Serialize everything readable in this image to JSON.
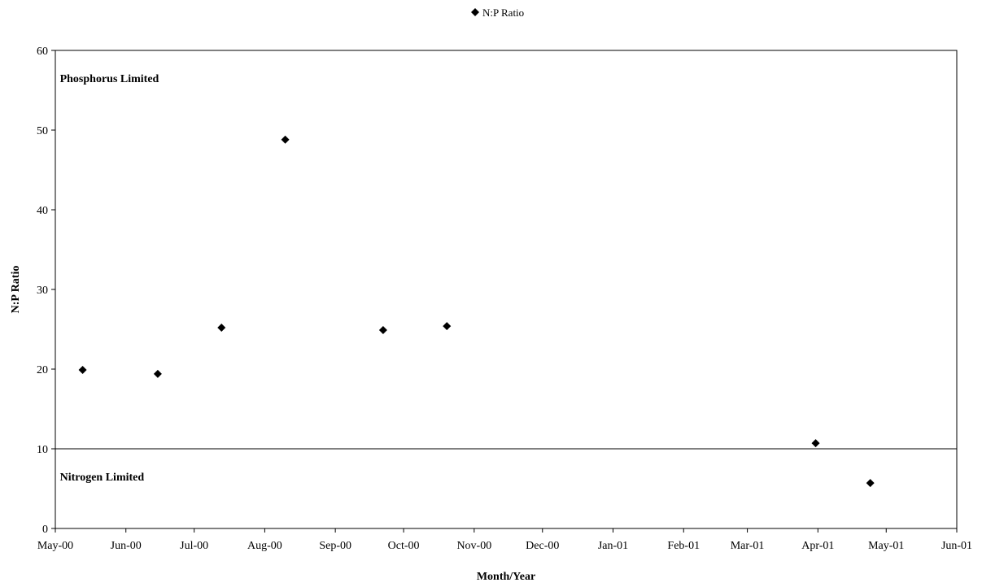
{
  "chart_data": {
    "type": "scatter",
    "title": "",
    "xlabel": "Month/Year",
    "ylabel": "N:P Ratio",
    "legend": {
      "position": "top",
      "entries": [
        {
          "name": "N:P Ratio",
          "marker": "diamond",
          "color": "#000000"
        }
      ]
    },
    "xlim": [
      "2000-05-01",
      "2001-06-01"
    ],
    "ylim": [
      0,
      60
    ],
    "yticks": [
      0,
      10,
      20,
      30,
      40,
      50,
      60
    ],
    "xtick_labels": [
      "May-00",
      "Jun-00",
      "Jul-00",
      "Aug-00",
      "Sep-00",
      "Oct-00",
      "Nov-00",
      "Dec-00",
      "Jan-01",
      "Feb-01",
      "Mar-01",
      "Apr-01",
      "May-01",
      "Jun-01"
    ],
    "grid": false,
    "series": [
      {
        "name": "N:P Ratio",
        "points": [
          {
            "x": "2000-05-13",
            "y": 19.9
          },
          {
            "x": "2000-06-15",
            "y": 19.4
          },
          {
            "x": "2000-07-13",
            "y": 25.2
          },
          {
            "x": "2000-08-10",
            "y": 48.8
          },
          {
            "x": "2000-09-22",
            "y": 24.9
          },
          {
            "x": "2000-10-20",
            "y": 25.4
          },
          {
            "x": "2001-03-31",
            "y": 10.7
          },
          {
            "x": "2001-04-24",
            "y": 5.7
          }
        ]
      }
    ],
    "reference_line": {
      "y": 10
    },
    "annotations": [
      {
        "text": "Phosphorus Limited",
        "x": "2000-05-03",
        "y": 56
      },
      {
        "text": "Nitrogen Limited",
        "x": "2000-05-03",
        "y": 6
      }
    ],
    "colors": {
      "marker": "#000000",
      "axis": "#000000",
      "background": "#ffffff"
    }
  }
}
